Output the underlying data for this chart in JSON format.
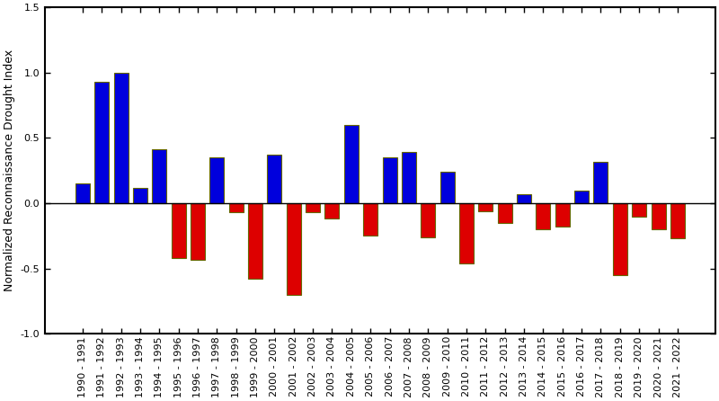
{
  "labels": [
    "1990 - 1991",
    "1991 - 1992",
    "1992 - 1993",
    "1993 - 1994",
    "1994 - 1995",
    "1995 - 1996",
    "1996 - 1997",
    "1997 - 1998",
    "1998 - 1999",
    "1999 - 2000",
    "2000 - 2001",
    "2001 - 2002",
    "2002 - 2003",
    "2003 - 2004",
    "2004 - 2005",
    "2005 - 2006",
    "2006 - 2007",
    "2007 - 2008",
    "2008 - 2009",
    "2009 - 2010",
    "2010 - 2011",
    "2011 - 2012",
    "2012 - 2013",
    "2013 - 2014",
    "2014 - 2015",
    "2015 - 2016",
    "2016 - 2017",
    "2017 - 2018",
    "2018 - 2019",
    "2019 - 2020",
    "2020 - 2021",
    "2021 - 2022"
  ],
  "values": [
    0.15,
    0.93,
    1.0,
    0.12,
    0.41,
    -0.42,
    -0.43,
    0.35,
    -0.07,
    -0.58,
    0.37,
    -0.7,
    -0.07,
    -0.12,
    0.6,
    -0.25,
    0.35,
    0.39,
    -0.26,
    0.24,
    -0.46,
    -0.06,
    -0.15,
    0.07,
    -0.2,
    -0.18,
    0.1,
    0.32,
    -0.55,
    -0.1,
    -0.2,
    -0.27
  ],
  "positive_color": "#0000dd",
  "negative_color": "#dd0000",
  "edge_color": "#666600",
  "background_color": "#ffffff",
  "ylabel": "Normalized Reconnaissance Drought Index",
  "ylim": [
    -1.0,
    1.5
  ],
  "yticks": [
    -1.0,
    -0.5,
    0.0,
    0.5,
    1.0,
    1.5
  ],
  "bar_width": 0.75,
  "ylabel_fontsize": 9,
  "tick_fontsize": 8,
  "edge_linewidth": 0.8
}
